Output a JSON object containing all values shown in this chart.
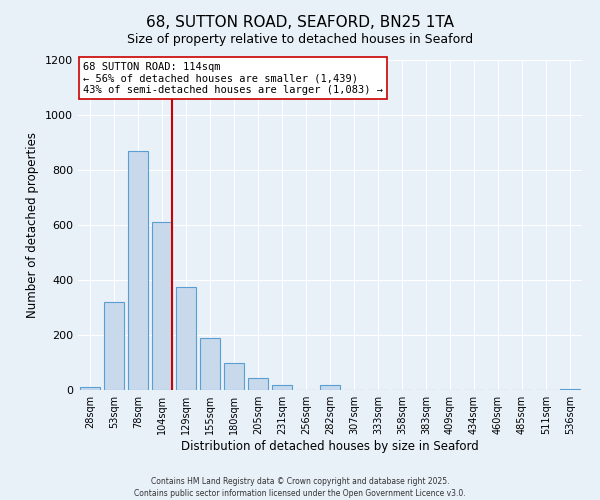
{
  "title": "68, SUTTON ROAD, SEAFORD, BN25 1TA",
  "subtitle": "Size of property relative to detached houses in Seaford",
  "xlabel": "Distribution of detached houses by size in Seaford",
  "ylabel": "Number of detached properties",
  "bar_labels": [
    "28sqm",
    "53sqm",
    "78sqm",
    "104sqm",
    "129sqm",
    "155sqm",
    "180sqm",
    "205sqm",
    "231sqm",
    "256sqm",
    "282sqm",
    "307sqm",
    "333sqm",
    "358sqm",
    "383sqm",
    "409sqm",
    "434sqm",
    "460sqm",
    "485sqm",
    "511sqm",
    "536sqm"
  ],
  "bar_values": [
    10,
    320,
    870,
    610,
    375,
    190,
    100,
    42,
    20,
    0,
    18,
    0,
    0,
    0,
    0,
    0,
    0,
    0,
    0,
    0,
    5
  ],
  "bar_color": "#c8d9ec",
  "bar_edge_color": "#5a9fd4",
  "vline_color": "#cc0000",
  "annotation_line1": "68 SUTTON ROAD: 114sqm",
  "annotation_line2": "← 56% of detached houses are smaller (1,439)",
  "annotation_line3": "43% of semi-detached houses are larger (1,083) →",
  "annotation_box_color": "#ffffff",
  "annotation_box_edge_color": "#cc0000",
  "ylim": [
    0,
    1200
  ],
  "yticks": [
    0,
    200,
    400,
    600,
    800,
    1000,
    1200
  ],
  "background_color": "#e8f0f8",
  "footer_line1": "Contains HM Land Registry data © Crown copyright and database right 2025.",
  "footer_line2": "Contains public sector information licensed under the Open Government Licence v3.0.",
  "title_fontsize": 11,
  "subtitle_fontsize": 9
}
